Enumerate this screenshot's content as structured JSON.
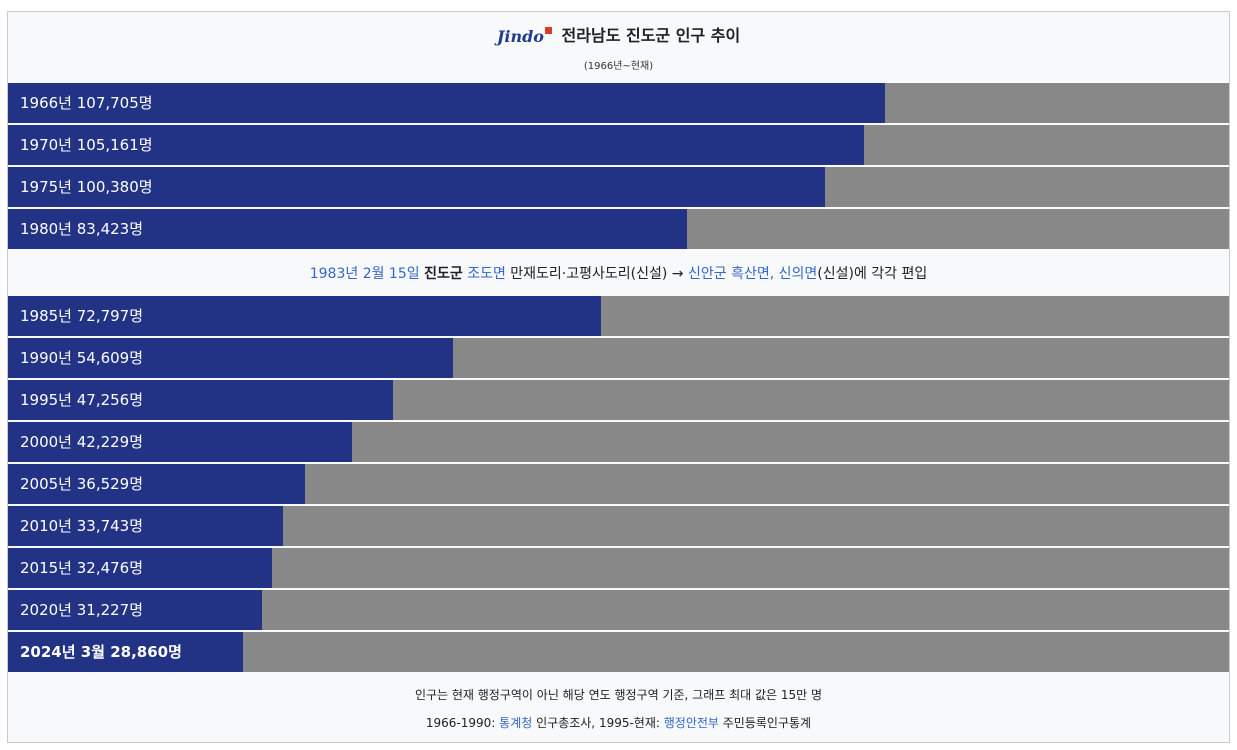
{
  "header": {
    "logo_text": "Jindo",
    "title": "전라남도 진도군 인구 추이",
    "subtitle": "(1966년~현재)"
  },
  "note": {
    "date": "1983년 2월 15일",
    "county": "진도군",
    "from_district": "조도면",
    "villages": "만재도리·고평사도리(신설)",
    "arrow": "→",
    "to_county_district": "신안군 흑산면",
    "comma": ",",
    "to_district2": "신의면",
    "tail": "(신설)에 각각 편입"
  },
  "footer": {
    "line1": "인구는 현재 행정구역이 아닌 해당 연도 행정구역 기준, 그래프 최대 값은 15만 명",
    "line2_a": "1966-1990: ",
    "line2_link1": "통계청",
    "line2_b": " 인구총조사, 1995-현재: ",
    "line2_link2": "행정안전부",
    "line2_c": " 주민등록인구통계"
  },
  "chart_data": {
    "type": "bar",
    "orientation": "horizontal",
    "title": "전라남도 진도군 인구 추이",
    "subtitle": "(1966년~현재)",
    "xlim": [
      0,
      150000
    ],
    "bar_color": "#223386",
    "track_color": "#888888",
    "categories": [
      "1966년",
      "1970년",
      "1975년",
      "1980년",
      "1985년",
      "1990년",
      "1995년",
      "2000년",
      "2005년",
      "2010년",
      "2015년",
      "2020년",
      "2024년 3월"
    ],
    "values": [
      107705,
      105161,
      100380,
      83423,
      72797,
      54609,
      47256,
      42229,
      36529,
      33743,
      32476,
      31227,
      28860
    ],
    "labels": [
      "1966년 107,705명",
      "1970년 105,161명",
      "1975년 100,380명",
      "1980년 83,423명",
      "1985년 72,797명",
      "1990년 54,609명",
      "1995년 47,256명",
      "2000년 42,229명",
      "2005년 36,529명",
      "2010년 33,743명",
      "2015년 32,476명",
      "2020년 31,227명",
      "2024년 3월 28,860명"
    ],
    "annotation": "1983년 2월 15일 진도군 조도면 만재도리·고평사도리(신설) → 신안군 흑산면, 신의면(신설)에 각각 편입"
  }
}
